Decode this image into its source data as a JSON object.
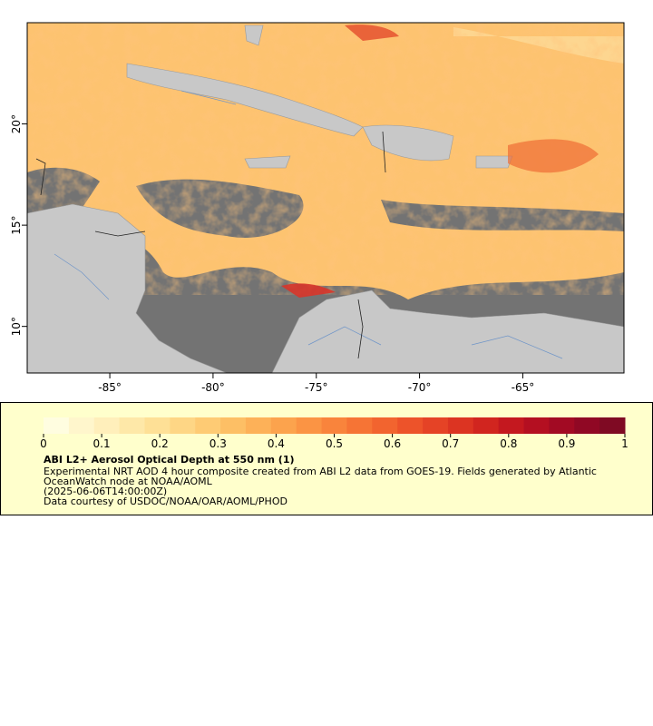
{
  "map": {
    "xlim": [
      -89,
      -60.1
    ],
    "ylim": [
      7.7,
      25
    ],
    "xticks": [
      {
        "value": -85,
        "label": "-85°"
      },
      {
        "value": -80,
        "label": "-80°"
      },
      {
        "value": -75,
        "label": "-75°"
      },
      {
        "value": -70,
        "label": "-70°"
      },
      {
        "value": -65,
        "label": "-65°"
      }
    ],
    "yticks": [
      {
        "value": 20,
        "label": "20°"
      },
      {
        "value": 15,
        "label": "15°"
      },
      {
        "value": 10,
        "label": "10°"
      }
    ]
  },
  "colorbar": {
    "lim": [
      0,
      1
    ],
    "ticks": [
      0,
      0.1,
      0.2,
      0.3,
      0.4,
      0.5,
      0.6,
      0.7,
      0.8,
      0.9,
      1
    ],
    "colors": [
      "#fffde0",
      "#fff6cc",
      "#ffefbb",
      "#fee8a8",
      "#fee096",
      "#fed685",
      "#fecb74",
      "#fdbf65",
      "#fdb158",
      "#fca34d",
      "#fb9444",
      "#f9843c",
      "#f67435",
      "#f2642f",
      "#ed532a",
      "#e54326",
      "#dc3422",
      "#d1251f",
      "#c4181f",
      "#b40f21",
      "#a20a23",
      "#900824",
      "#7f0a23"
    ]
  },
  "legend": {
    "title": "ABI L2+ Aerosol Optical Depth at 550 nm (1)",
    "lines": [
      "Experimental NRT AOD 4 hour composite created from ABI L2 data from GOES-19. Fields generated by Atlantic",
      "OceanWatch node at NOAA/AOML",
      "(2025-06-06T14:00:00Z)",
      "Data courtesy of USDOC/NOAA/OAR/AOML/PHOD"
    ]
  }
}
